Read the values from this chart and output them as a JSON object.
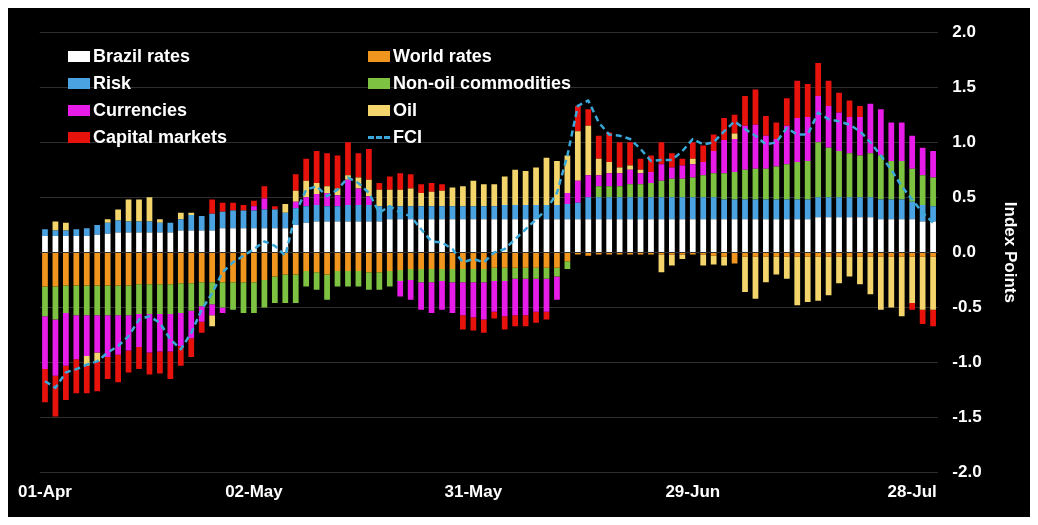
{
  "chart_data": {
    "type": "bar",
    "stacked": true,
    "ylabel": "Index Points",
    "grid": "y",
    "legend": "top left",
    "ylim": [
      -2,
      2
    ],
    "yticks": [
      {
        "value": -2,
        "label": "-2.0"
      },
      {
        "value": -1.5,
        "label": "-1.5"
      },
      {
        "value": -1,
        "label": "-1.0"
      },
      {
        "value": -0.5,
        "label": "-0.5"
      },
      {
        "value": 0,
        "label": "0.0"
      },
      {
        "value": 0.5,
        "label": "0.5"
      },
      {
        "value": 1,
        "label": "1.0"
      },
      {
        "value": 1.5,
        "label": "1.5"
      },
      {
        "value": 2,
        "label": "2.0"
      }
    ],
    "categories": [
      "01-Apr",
      null,
      null,
      null,
      null,
      null,
      null,
      null,
      null,
      null,
      null,
      null,
      null,
      null,
      null,
      null,
      null,
      null,
      null,
      null,
      "02-May",
      null,
      null,
      null,
      null,
      null,
      null,
      null,
      null,
      null,
      null,
      null,
      null,
      null,
      null,
      null,
      null,
      null,
      null,
      null,
      null,
      "31-May",
      null,
      null,
      null,
      null,
      null,
      null,
      null,
      null,
      null,
      null,
      null,
      null,
      null,
      null,
      null,
      null,
      null,
      null,
      null,
      null,
      "29-Jun",
      null,
      null,
      null,
      null,
      null,
      null,
      null,
      null,
      null,
      null,
      null,
      null,
      null,
      null,
      null,
      null,
      null,
      null,
      null,
      null,
      "28-Jul",
      null,
      null
    ],
    "series": [
      {
        "name": "Brazil rates",
        "color": "#ffffff",
        "values": [
          0.15,
          0.15,
          0.15,
          0.15,
          0.15,
          0.16,
          0.17,
          0.18,
          0.18,
          0.18,
          0.18,
          0.18,
          0.18,
          0.2,
          0.2,
          0.2,
          0.2,
          0.22,
          0.22,
          0.22,
          0.22,
          0.22,
          0.22,
          0.22,
          0.25,
          0.27,
          0.28,
          0.28,
          0.28,
          0.28,
          0.28,
          0.28,
          0.28,
          0.3,
          0.3,
          0.3,
          0.3,
          0.3,
          0.3,
          0.3,
          0.3,
          0.3,
          0.3,
          0.3,
          0.3,
          0.3,
          0.3,
          0.3,
          0.3,
          0.3,
          0.3,
          0.3,
          0.3,
          0.3,
          0.3,
          0.3,
          0.3,
          0.3,
          0.3,
          0.3,
          0.3,
          0.3,
          0.3,
          0.3,
          0.3,
          0.3,
          0.3,
          0.3,
          0.3,
          0.3,
          0.3,
          0.3,
          0.3,
          0.3,
          0.32,
          0.32,
          0.32,
          0.32,
          0.32,
          0.32,
          0.3,
          0.3,
          0.3,
          0.3,
          0.28,
          0.28
        ]
      },
      {
        "name": "World rates",
        "color": "#f0961e",
        "values": [
          -0.31,
          -0.31,
          -0.3,
          -0.3,
          -0.3,
          -0.3,
          -0.3,
          -0.3,
          -0.3,
          -0.29,
          -0.29,
          -0.29,
          -0.29,
          -0.28,
          -0.28,
          -0.27,
          -0.27,
          -0.27,
          -0.27,
          -0.27,
          -0.27,
          -0.25,
          -0.22,
          -0.2,
          -0.2,
          -0.17,
          -0.18,
          -0.2,
          -0.17,
          -0.17,
          -0.17,
          -0.18,
          -0.18,
          -0.17,
          -0.16,
          -0.15,
          -0.15,
          -0.15,
          -0.15,
          -0.15,
          -0.15,
          -0.15,
          -0.15,
          -0.14,
          -0.14,
          -0.14,
          -0.14,
          -0.14,
          -0.14,
          -0.14,
          -0.08,
          -0.02,
          -0.03,
          -0.02,
          -0.02,
          -0.02,
          -0.02,
          -0.02,
          -0.02,
          -0.02,
          -0.02,
          -0.02,
          -0.02,
          -0.02,
          -0.03,
          -0.04,
          -0.1,
          -0.04,
          -0.04,
          -0.04,
          -0.04,
          -0.04,
          -0.04,
          -0.04,
          -0.04,
          -0.04,
          -0.04,
          -0.04,
          -0.04,
          -0.04,
          -0.04,
          -0.04,
          -0.04,
          -0.04,
          -0.04,
          -0.04
        ]
      },
      {
        "name": "Risk",
        "color": "#4aa3e0",
        "values": [
          0.06,
          0.05,
          0.05,
          0.06,
          0.07,
          0.09,
          0.1,
          0.11,
          0.1,
          0.1,
          0.1,
          0.09,
          0.09,
          0.1,
          0.14,
          0.13,
          0.15,
          0.15,
          0.16,
          0.16,
          0.16,
          0.17,
          0.17,
          0.14,
          0.15,
          0.15,
          0.15,
          0.14,
          0.14,
          0.15,
          0.15,
          0.15,
          0.14,
          0.12,
          0.12,
          0.12,
          0.12,
          0.12,
          0.12,
          0.12,
          0.12,
          0.12,
          0.12,
          0.12,
          0.13,
          0.13,
          0.13,
          0.13,
          0.13,
          0.13,
          0.14,
          0.15,
          0.2,
          0.2,
          0.2,
          0.2,
          0.2,
          0.2,
          0.2,
          0.2,
          0.2,
          0.2,
          0.2,
          0.2,
          0.2,
          0.18,
          0.18,
          0.18,
          0.18,
          0.18,
          0.18,
          0.18,
          0.18,
          0.18,
          0.18,
          0.18,
          0.18,
          0.18,
          0.18,
          0.18,
          0.18,
          0.18,
          0.18,
          0.16,
          0.15,
          0.14
        ]
      },
      {
        "name": "Non-oil commodities",
        "color": "#7ec242",
        "values": [
          -0.27,
          -0.3,
          -0.25,
          -0.27,
          -0.27,
          -0.27,
          -0.27,
          -0.27,
          -0.27,
          -0.27,
          -0.27,
          -0.27,
          -0.27,
          -0.27,
          -0.25,
          -0.22,
          -0.2,
          -0.23,
          -0.25,
          -0.28,
          -0.28,
          -0.25,
          -0.24,
          -0.26,
          -0.26,
          -0.14,
          -0.16,
          -0.23,
          -0.14,
          -0.14,
          -0.14,
          -0.16,
          -0.16,
          -0.14,
          -0.1,
          -0.1,
          -0.12,
          -0.12,
          -0.11,
          -0.12,
          -0.12,
          -0.12,
          -0.12,
          -0.12,
          -0.12,
          -0.1,
          -0.1,
          -0.1,
          -0.1,
          -0.08,
          -0.07,
          0,
          0,
          0.1,
          0.1,
          0.1,
          0.12,
          0.12,
          0.13,
          0.15,
          0.17,
          0.17,
          0.18,
          0.2,
          0.22,
          0.24,
          0.25,
          0.27,
          0.28,
          0.28,
          0.3,
          0.32,
          0.34,
          0.35,
          0.5,
          0.45,
          0.42,
          0.4,
          0.38,
          0.4,
          0.4,
          0.35,
          0.35,
          0.3,
          0.27,
          0.26
        ]
      },
      {
        "name": "Currencies",
        "color": "#e81ce8",
        "values": [
          -0.48,
          -0.51,
          -0.48,
          -0.4,
          -0.37,
          -0.34,
          -0.38,
          -0.36,
          -0.32,
          -0.3,
          -0.35,
          -0.34,
          -0.34,
          -0.3,
          -0.25,
          -0.14,
          -0.1,
          -0.05,
          0,
          0,
          0.04,
          0.1,
          0,
          0,
          0.06,
          0.08,
          0.1,
          0.12,
          0.1,
          0.23,
          0.15,
          0.08,
          0,
          0,
          -0.14,
          -0.18,
          -0.25,
          -0.28,
          -0.26,
          -0.28,
          -0.3,
          -0.32,
          -0.34,
          -0.28,
          -0.32,
          -0.33,
          -0.33,
          -0.3,
          -0.3,
          -0.21,
          0.1,
          0.2,
          0.2,
          0.1,
          0.12,
          0.12,
          0.13,
          0.1,
          0.1,
          0.15,
          0.1,
          0.12,
          0.12,
          0.12,
          0.2,
          0.3,
          0.3,
          0.4,
          0.4,
          0.3,
          0.25,
          0.35,
          0.4,
          0.4,
          0.42,
          0.38,
          0.35,
          0.33,
          0.35,
          0.45,
          0.42,
          0.35,
          0.35,
          0.3,
          0.25,
          0.24
        ]
      },
      {
        "name": "Oil",
        "color": "#f3d56b",
        "values": [
          0,
          0.08,
          0.07,
          0,
          -0.09,
          -0.08,
          0.03,
          0.1,
          0.2,
          0.2,
          0.22,
          0.03,
          0,
          0.06,
          0.02,
          0,
          -0.1,
          0,
          0,
          0,
          0,
          0,
          0,
          0.08,
          0.1,
          0.15,
          0.1,
          0.06,
          0.06,
          0.04,
          0.1,
          0.15,
          0.15,
          0.15,
          0.15,
          0.16,
          0.12,
          0.13,
          0.14,
          0.17,
          0.18,
          0.23,
          0.2,
          0.2,
          0.26,
          0.32,
          0.31,
          0.34,
          0.43,
          0.4,
          0.34,
          0.45,
          0.45,
          0.15,
          0.1,
          0.05,
          0.04,
          0.03,
          0,
          -0.16,
          -0.1,
          -0.04,
          0.05,
          -0.1,
          -0.08,
          -0.08,
          0.05,
          -0.32,
          -0.38,
          -0.23,
          -0.16,
          -0.2,
          -0.44,
          -0.41,
          -0.4,
          -0.35,
          -0.24,
          -0.18,
          -0.25,
          -0.34,
          -0.48,
          -0.46,
          -0.54,
          -0.42,
          -0.48,
          -0.48
        ]
      },
      {
        "name": "Capital markets",
        "color": "#e8120c",
        "values": [
          -0.3,
          -0.37,
          -0.31,
          -0.31,
          -0.25,
          -0.27,
          -0.2,
          -0.25,
          -0.2,
          -0.2,
          -0.2,
          -0.2,
          -0.25,
          -0.18,
          -0.17,
          -0.1,
          0.13,
          0.08,
          0.07,
          0.05,
          0.05,
          0.11,
          0.03,
          0,
          0.15,
          0.2,
          0.29,
          0.3,
          0.3,
          0.3,
          0.22,
          0.28,
          0.06,
          0.12,
          0.15,
          0.13,
          0.08,
          0.08,
          0.06,
          0,
          -0.13,
          -0.12,
          -0.12,
          -0.06,
          -0.12,
          -0.1,
          -0.1,
          -0.1,
          -0.07,
          0,
          0,
          0.23,
          0.15,
          0.21,
          0.27,
          0.23,
          0.21,
          0.1,
          0.15,
          0.2,
          0.13,
          0.06,
          0.15,
          0.15,
          0.15,
          0.2,
          0.17,
          0.27,
          0.32,
          0.18,
          0.15,
          0.25,
          0.34,
          0.3,
          0.3,
          0.23,
          0.18,
          0.15,
          0.1,
          0,
          0,
          0,
          0,
          -0.06,
          -0.13,
          -0.15
        ]
      },
      {
        "name": "FCI",
        "type": "line",
        "line_style": "dashed",
        "marker": "none",
        "color": "#3aa8d8",
        "values": [
          -1.17,
          -1.23,
          -1.09,
          -1.06,
          -1.02,
          -0.99,
          -0.91,
          -0.85,
          -0.76,
          -0.61,
          -0.58,
          -0.64,
          -0.79,
          -0.88,
          -0.73,
          -0.52,
          -0.37,
          -0.18,
          -0.09,
          -0.03,
          0.03,
          0.1,
          0.06,
          -0.03,
          0.36,
          0.57,
          0.6,
          0.51,
          0.57,
          0.68,
          0.63,
          0.54,
          0.36,
          0.42,
          0.36,
          0.33,
          0.21,
          0.1,
          0.09,
          0.03,
          -0.09,
          -0.06,
          -0.09,
          0,
          0.03,
          0.12,
          0.21,
          0.3,
          0.39,
          0.54,
          0.88,
          1.33,
          1.38,
          1.18,
          1.07,
          1.06,
          1.03,
          0.94,
          0.83,
          0.84,
          0.84,
          0.92,
          1.03,
          0.98,
          1.0,
          1.1,
          1.19,
          1.12,
          1.06,
          0.98,
          1.0,
          1.13,
          1.07,
          1.07,
          1.27,
          1.21,
          1.19,
          1.16,
          1.1,
          1.0,
          0.88,
          0.75,
          0.6,
          0.48,
          0.36,
          0.27
        ]
      }
    ]
  }
}
